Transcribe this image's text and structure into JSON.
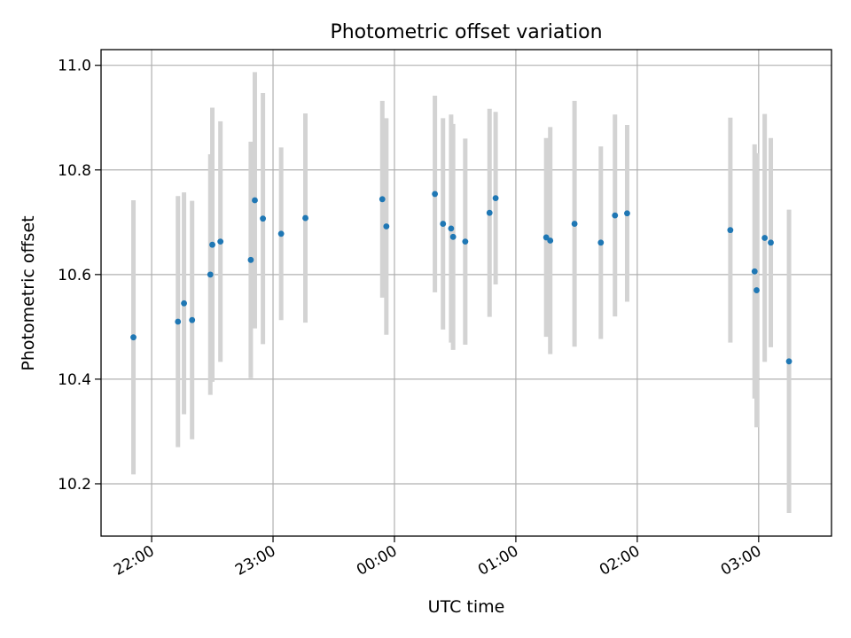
{
  "chart_data": {
    "type": "scatter",
    "title": "Photometric offset variation",
    "xlabel": "UTC time",
    "ylabel": "Photometric offset",
    "x_unit": "UTC time (HH:MM), night spanning midnight",
    "xticks": [
      "22:00",
      "23:00",
      "00:00",
      "01:00",
      "02:00",
      "03:00"
    ],
    "yticks": [
      "10.2",
      "10.4",
      "10.6",
      "10.8",
      "11.0"
    ],
    "xlim": [
      "21:35",
      "03:36"
    ],
    "ylim": [
      10.1,
      11.03
    ],
    "grid": true,
    "colors": {
      "point": "#1f77b4",
      "errorbar": "#d3d3d3",
      "grid": "#b0b0b0"
    },
    "series": [
      {
        "x": [
          "21:51",
          "22:13",
          "22:16",
          "22:20",
          "22:29",
          "22:30",
          "22:34",
          "22:49",
          "22:51",
          "22:55",
          "23:04",
          "23:16",
          "23:54",
          "23:56",
          "00:20",
          "00:24",
          "00:28",
          "00:29",
          "00:35",
          "00:47",
          "00:50",
          "01:15",
          "01:17",
          "01:29",
          "01:42",
          "01:49",
          "01:55",
          "02:46",
          "02:58",
          "02:59",
          "03:03",
          "03:06",
          "03:15"
        ],
        "y": [
          10.48,
          10.51,
          10.545,
          10.513,
          10.6,
          10.657,
          10.663,
          10.628,
          10.742,
          10.707,
          10.678,
          10.708,
          10.744,
          10.692,
          10.754,
          10.697,
          10.688,
          10.672,
          10.663,
          10.718,
          10.746,
          10.671,
          10.665,
          10.697,
          10.661,
          10.713,
          10.717,
          10.685,
          10.606,
          10.57,
          10.67,
          10.661,
          10.434
        ],
        "err": [
          0.262,
          0.24,
          0.212,
          0.228,
          0.23,
          0.262,
          0.23,
          0.226,
          0.245,
          0.24,
          0.165,
          0.2,
          0.188,
          0.207,
          0.188,
          0.202,
          0.218,
          0.216,
          0.197,
          0.199,
          0.165,
          0.19,
          0.217,
          0.235,
          0.184,
          0.193,
          0.169,
          0.215,
          0.243,
          0.262,
          0.237,
          0.2,
          0.29
        ]
      }
    ]
  }
}
